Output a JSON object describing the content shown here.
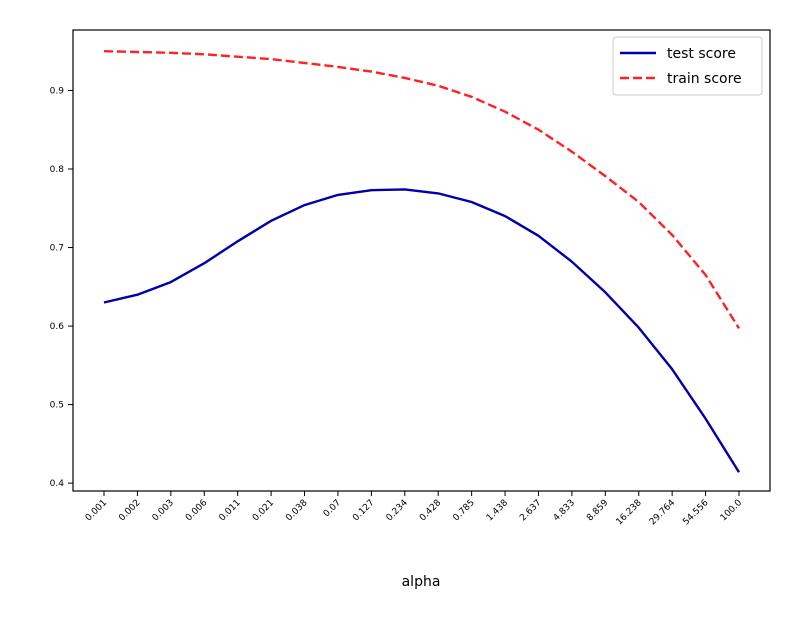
{
  "chart_data": {
    "type": "line",
    "title": "",
    "xlabel": "alpha",
    "ylabel": "",
    "categories": [
      "0.001",
      "0.002",
      "0.003",
      "0.006",
      "0.011",
      "0.021",
      "0.038",
      "0.07",
      "0.127",
      "0.234",
      "0.428",
      "0.785",
      "1.438",
      "2.637",
      "4.833",
      "8.859",
      "16.238",
      "29.764",
      "54.556",
      "100.0"
    ],
    "yticks": [
      "0.4",
      "0.5",
      "0.6",
      "0.7",
      "0.8",
      "0.9"
    ],
    "ylim": [
      0.39,
      0.977
    ],
    "grid": false,
    "legend": "top-right",
    "series": [
      {
        "name": "test score",
        "color": "#0000aa",
        "style": "solid",
        "values": [
          0.63,
          0.64,
          0.656,
          0.68,
          0.708,
          0.734,
          0.754,
          0.767,
          0.773,
          0.774,
          0.769,
          0.758,
          0.74,
          0.715,
          0.682,
          0.643,
          0.598,
          0.545,
          0.482,
          0.414
        ]
      },
      {
        "name": "train score",
        "color": "#ff2222",
        "style": "dashed",
        "values": [
          0.95,
          0.949,
          0.948,
          0.946,
          0.943,
          0.94,
          0.935,
          0.93,
          0.924,
          0.916,
          0.906,
          0.892,
          0.873,
          0.85,
          0.822,
          0.791,
          0.758,
          0.716,
          0.665,
          0.597
        ]
      }
    ]
  }
}
